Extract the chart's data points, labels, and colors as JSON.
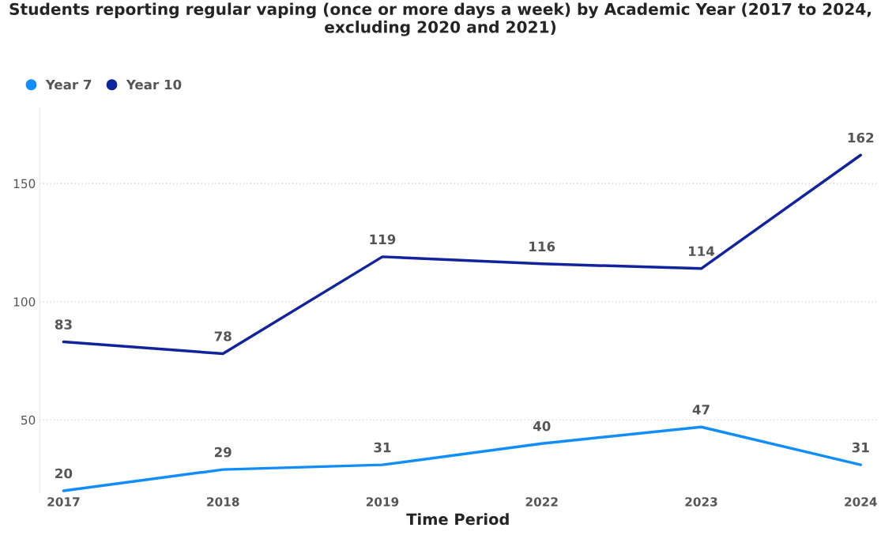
{
  "chart_data": {
    "type": "line",
    "title": "Students reporting regular vaping (once or more days a week) by Academic Year (2017 to 2024, excluding 2020 and 2021)",
    "xlabel": "Time Period",
    "categories": [
      "2017",
      "2018",
      "2019",
      "2022",
      "2023",
      "2024"
    ],
    "series": [
      {
        "name": "Year 7",
        "color": "#118dff",
        "values": [
          20,
          29,
          31,
          40,
          47,
          31
        ]
      },
      {
        "name": "Year 10",
        "color": "#12239e",
        "values": [
          83,
          78,
          119,
          116,
          114,
          162
        ]
      }
    ],
    "ylim": [
      19,
      182
    ],
    "yticks": [
      50,
      100,
      150
    ],
    "grid": "y",
    "legend": "top left",
    "data_labels": true,
    "marker": "none",
    "line_style": "solid"
  }
}
